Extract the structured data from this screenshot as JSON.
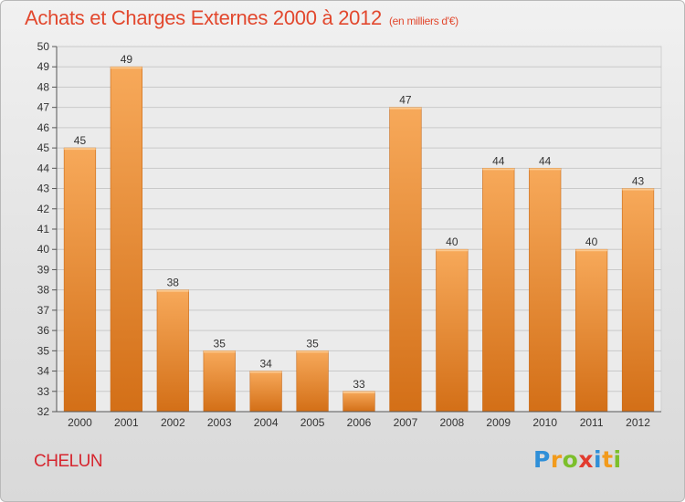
{
  "title": "Achats et Charges Externes 2000 à 2012",
  "unit": "(en milliers d'€)",
  "commune": "CHELUN",
  "logo": {
    "letters": [
      "P",
      "r",
      "o",
      "x",
      "i",
      "t",
      "i"
    ],
    "colors": [
      "#2f8fd8",
      "#f29b1c",
      "#7cbf2b",
      "#e23b2e",
      "#2f8fd8",
      "#f29b1c",
      "#7cbf2b"
    ]
  },
  "colors": {
    "title": "#e2482e",
    "commune": "#d6262f",
    "bar_light": "#f7a95a",
    "bar_dark": "#d36f17"
  },
  "chart_data": {
    "type": "bar",
    "title": "Achats et Charges Externes 2000 à 2012",
    "subtitle": "(en milliers d'€)",
    "categories": [
      "2000",
      "2001",
      "2002",
      "2003",
      "2004",
      "2005",
      "2006",
      "2007",
      "2008",
      "2009",
      "2010",
      "2011",
      "2012"
    ],
    "values": [
      45,
      49,
      38,
      35,
      34,
      35,
      33,
      47,
      40,
      44,
      44,
      40,
      43
    ],
    "ylim": [
      32,
      50
    ],
    "yticks": [
      32,
      33,
      34,
      35,
      36,
      37,
      38,
      39,
      40,
      41,
      42,
      43,
      44,
      45,
      46,
      47,
      48,
      49,
      50
    ],
    "grid": true,
    "xlabel": "",
    "ylabel": ""
  }
}
